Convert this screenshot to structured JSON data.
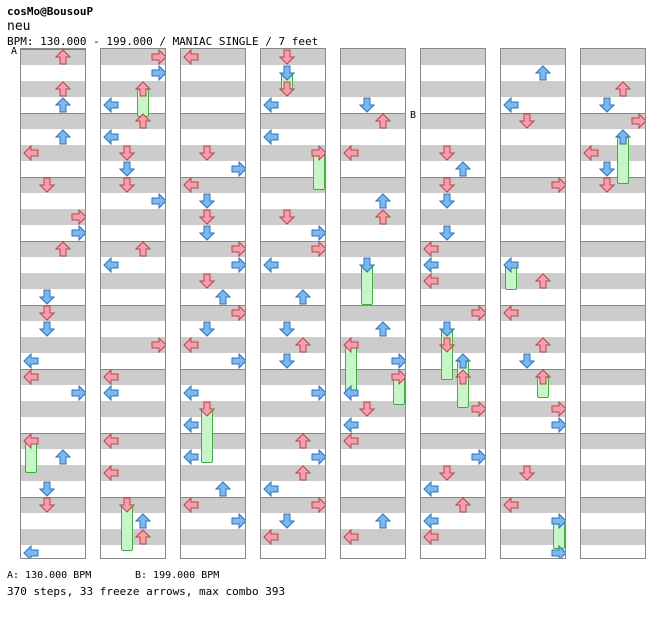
{
  "header": {
    "title": "cosMo@BousouP",
    "subtitle": "neu",
    "meta": "BPM: 130.000 - 199.000 / MANIAC SINGLE / 7 feet"
  },
  "markers": {
    "a": "A",
    "b": "B"
  },
  "legend": {
    "a": "A: 130.000 BPM",
    "b": "B: 199.000 BPM"
  },
  "stats": "370 steps, 33 freeze arrows, max combo 393",
  "colors": {
    "arrow_red": "#f3a0a8",
    "arrow_blue": "#7cb8f0",
    "freeze": "#c8f5c8",
    "shade": "#cccccc"
  },
  "icons": {
    "left": "left-arrow-icon",
    "down": "down-arrow-icon",
    "up": "up-arrow-icon",
    "right": "right-arrow-icon"
  }
}
